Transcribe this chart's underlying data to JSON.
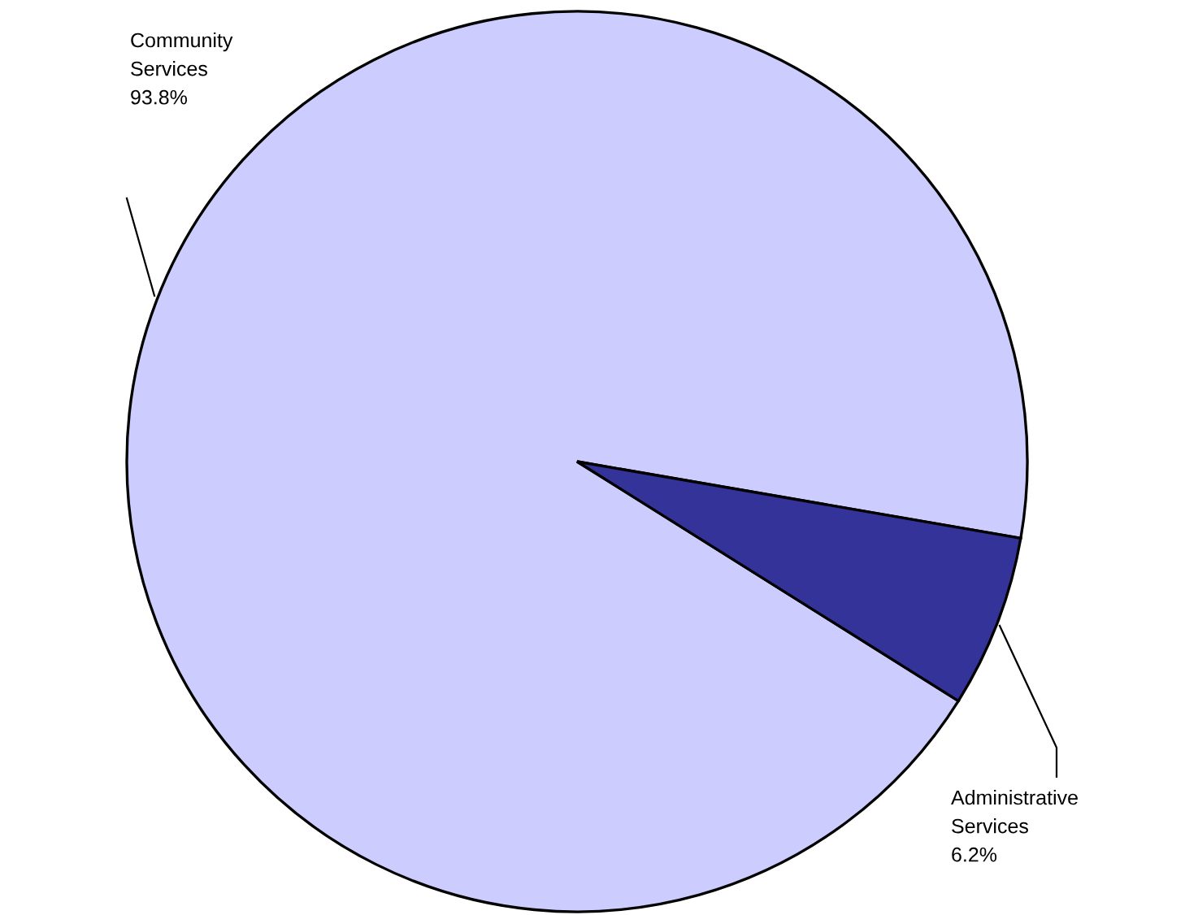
{
  "chart_data": {
    "type": "pie",
    "categories": [
      "Community Services",
      "Administrative Services"
    ],
    "values": [
      93.8,
      6.2
    ],
    "value_labels": [
      "93.8%",
      "6.2%"
    ],
    "colors": [
      "#ccccff",
      "#333399"
    ]
  }
}
